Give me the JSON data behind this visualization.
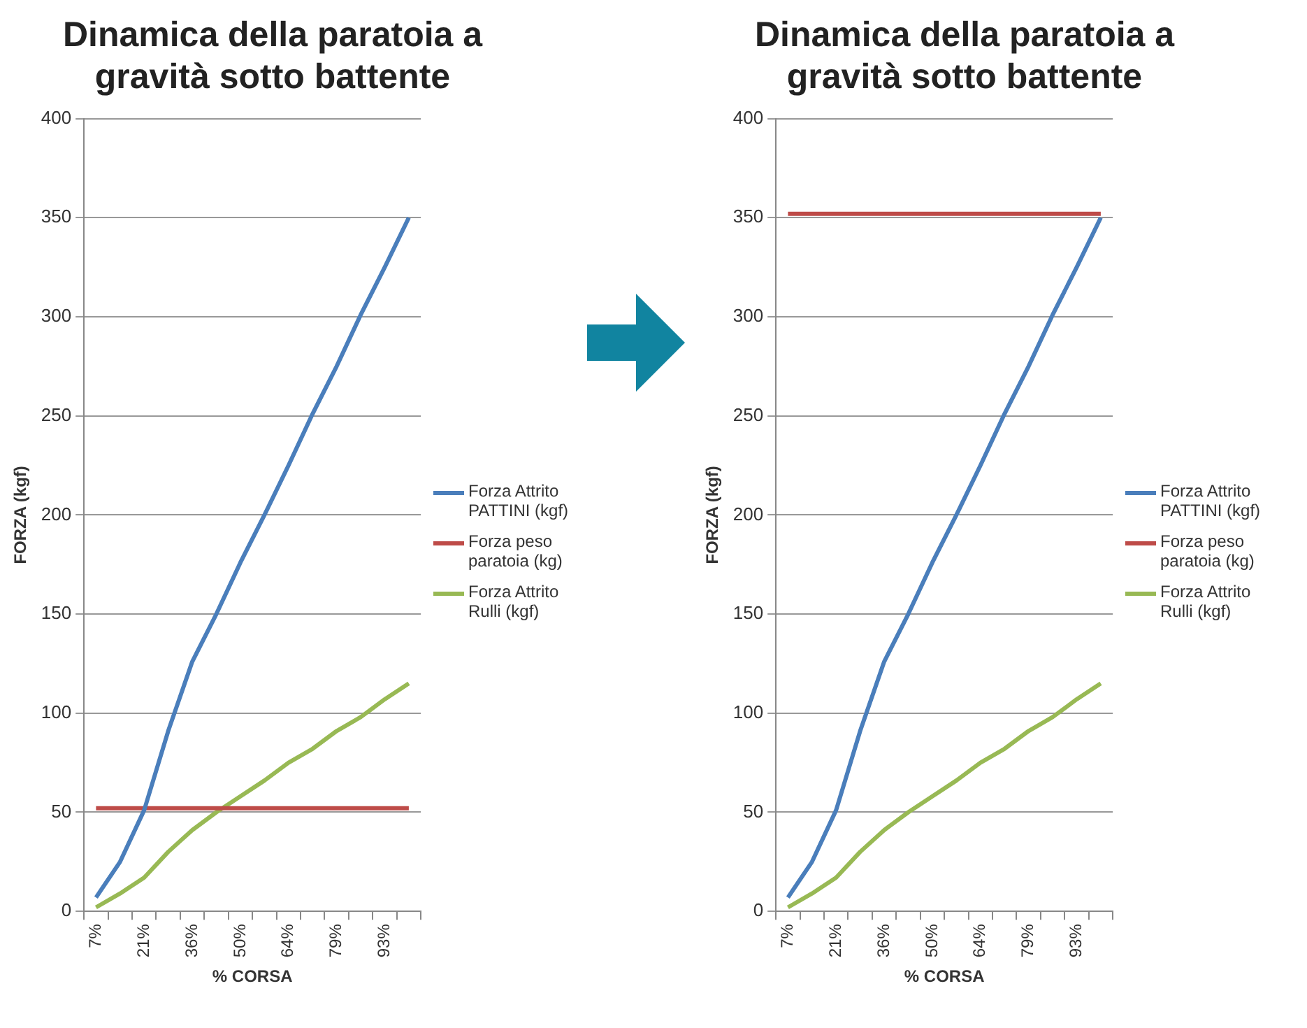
{
  "chart_data": [
    {
      "type": "line",
      "title": "Dinamica della paratoia a gravità sotto battente",
      "xlabel": "% CORSA",
      "ylabel": "FORZA (kgf)",
      "categories": [
        "7%",
        null,
        "21%",
        null,
        "36%",
        null,
        "50%",
        null,
        "64%",
        null,
        "79%",
        null,
        "93%",
        null
      ],
      "ylim": [
        0,
        400
      ],
      "yticks": [
        0,
        50,
        100,
        150,
        200,
        250,
        300,
        350,
        400
      ],
      "grid": "y",
      "legend": "right",
      "marker": "none",
      "series": [
        {
          "name": "Forza Attrito PATTINI (kgf)",
          "color": "#4a7ebb",
          "values": [
            7,
            25,
            51,
            91,
            126,
            150,
            176,
            200,
            225,
            251,
            275,
            301,
            325,
            350
          ]
        },
        {
          "name": "Forza peso paratoia (kg)",
          "color": "#be4b48",
          "values": [
            52,
            52,
            52,
            52,
            52,
            52,
            52,
            52,
            52,
            52,
            52,
            52,
            52,
            52
          ]
        },
        {
          "name": "Forza Attrito Rulli (kgf)",
          "color": "#98b954",
          "values": [
            2,
            9,
            17,
            30,
            41,
            50,
            58,
            66,
            75,
            82,
            91,
            98,
            107,
            115
          ]
        }
      ]
    },
    {
      "type": "line",
      "title": "Dinamica della paratoia a gravità sotto battente",
      "xlabel": "% CORSA",
      "ylabel": "FORZA (kgf)",
      "categories": [
        "7%",
        null,
        "21%",
        null,
        "36%",
        null,
        "50%",
        null,
        "64%",
        null,
        "79%",
        null,
        "93%",
        null
      ],
      "ylim": [
        0,
        400
      ],
      "yticks": [
        0,
        50,
        100,
        150,
        200,
        250,
        300,
        350,
        400
      ],
      "grid": "y",
      "legend": "right",
      "marker": "none",
      "series": [
        {
          "name": "Forza Attrito PATTINI (kgf)",
          "color": "#4a7ebb",
          "values": [
            7,
            25,
            51,
            91,
            126,
            150,
            176,
            200,
            225,
            251,
            275,
            301,
            325,
            350
          ]
        },
        {
          "name": "Forza peso paratoia (kg)",
          "color": "#be4b48",
          "values": [
            352,
            352,
            352,
            352,
            352,
            352,
            352,
            352,
            352,
            352,
            352,
            352,
            352,
            352
          ]
        },
        {
          "name": "Forza Attrito Rulli (kgf)",
          "color": "#98b954",
          "values": [
            2,
            9,
            17,
            30,
            41,
            50,
            58,
            66,
            75,
            82,
            91,
            98,
            107,
            115
          ]
        }
      ]
    }
  ]
}
